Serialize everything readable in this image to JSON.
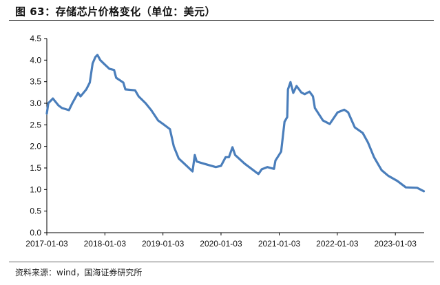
{
  "title": "图 63：存储芯片价格变化（单位：美元）",
  "source": "资料来源：wind，国海证券研究所",
  "colors": {
    "line": "#4a7ebb",
    "axis": "#000000"
  },
  "chart_data": {
    "type": "line",
    "title": "图 63：存储芯片价格变化（单位：美元）",
    "xlabel": "",
    "ylabel": "",
    "xlim": [
      "2017-01-03",
      "2023-07-03"
    ],
    "ylim": [
      0,
      4.5
    ],
    "grid": false,
    "x_ticks": [
      "2017-01-03",
      "2018-01-03",
      "2019-01-03",
      "2020-01-03",
      "2021-01-03",
      "2022-01-03",
      "2023-01-03"
    ],
    "y_ticks": [
      "0.0",
      "0.5",
      "1.0",
      "1.5",
      "2.0",
      "2.5",
      "3.0",
      "3.5",
      "4.0",
      "4.5"
    ],
    "series": [
      {
        "x": [
          "2017-01-03",
          "2017-01-12",
          "2017-01-20",
          "2017-02-10",
          "2017-03-17",
          "2017-04-08",
          "2017-05-22",
          "2017-06-12",
          "2017-07-18",
          "2017-08-03",
          "2017-09-08",
          "2017-09-30",
          "2017-10-18",
          "2017-11-04",
          "2017-11-17",
          "2017-12-05",
          "2017-12-27",
          "2018-01-31",
          "2018-03-02",
          "2018-03-15",
          "2018-04-29",
          "2018-05-12",
          "2018-07-12",
          "2018-08-03",
          "2018-09-16",
          "2018-10-21",
          "2018-12-04",
          "2019-01-03",
          "2019-02-16",
          "2019-03-12",
          "2019-04-12",
          "2019-05-17",
          "2019-07-08",
          "2019-07-22",
          "2019-08-03",
          "2019-09-16",
          "2019-12-01",
          "2020-01-03",
          "2020-02-01",
          "2020-02-22",
          "2020-03-15",
          "2020-04-01",
          "2020-05-30",
          "2020-08-25",
          "2020-09-15",
          "2020-10-20",
          "2020-12-01",
          "2020-12-10",
          "2021-01-15",
          "2021-02-05",
          "2021-02-22",
          "2021-02-27",
          "2021-03-15",
          "2021-04-01",
          "2021-04-22",
          "2021-05-22",
          "2021-06-12",
          "2021-07-12",
          "2021-08-03",
          "2021-08-15",
          "2021-10-05",
          "2021-11-16",
          "2022-01-05",
          "2022-02-16",
          "2022-03-12",
          "2022-04-23",
          "2022-06-12",
          "2022-07-15",
          "2022-08-22",
          "2022-10-08",
          "2022-11-19",
          "2023-01-15",
          "2023-03-10",
          "2023-05-20",
          "2023-07-01"
        ],
        "y": [
          2.76,
          3.0,
          3.03,
          3.11,
          2.95,
          2.89,
          2.84,
          3.0,
          3.24,
          3.16,
          3.32,
          3.48,
          3.92,
          4.07,
          4.12,
          4.0,
          3.92,
          3.8,
          3.77,
          3.59,
          3.48,
          3.32,
          3.3,
          3.16,
          3.0,
          2.84,
          2.6,
          2.52,
          2.4,
          2.0,
          1.72,
          1.6,
          1.42,
          1.8,
          1.65,
          1.6,
          1.52,
          1.55,
          1.75,
          1.75,
          1.98,
          1.8,
          1.6,
          1.36,
          1.47,
          1.52,
          1.48,
          1.67,
          1.88,
          2.57,
          2.68,
          3.32,
          3.49,
          3.24,
          3.4,
          3.25,
          3.21,
          3.27,
          3.16,
          2.89,
          2.6,
          2.52,
          2.79,
          2.85,
          2.79,
          2.44,
          2.31,
          2.09,
          1.75,
          1.45,
          1.32,
          1.2,
          1.05,
          1.04,
          0.96
        ]
      }
    ]
  }
}
